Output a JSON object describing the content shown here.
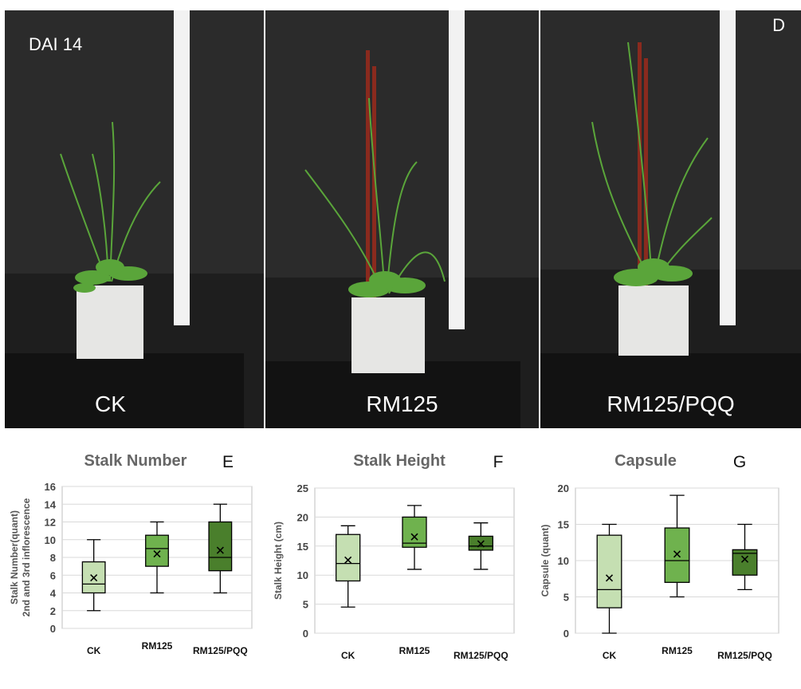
{
  "photos": {
    "day_label": "DAI 14",
    "panel_letter": "D",
    "treatments": [
      "CK",
      "RM125",
      "RM125/PQQ"
    ]
  },
  "colors": {
    "background": "#2b2b2b",
    "tray": "#1e1e1e",
    "pot": "#e6e6e4",
    "leaf": "#5aa53a",
    "stick": "#8a2a1e",
    "ruler": "#f2f2f2",
    "box_ck": "#c5dfb2",
    "box_rm125": "#6fb24e",
    "box_pqq": "#4a7f2c"
  },
  "chart_data": [
    {
      "type": "box",
      "title": "Stalk Number",
      "panel": "E",
      "ylabel": "Stalk Number(quant)",
      "ylabel2": "2nd and 3rd inflorescence",
      "ylim": [
        0,
        16
      ],
      "yticks": [
        0,
        2,
        4,
        6,
        8,
        10,
        12,
        14,
        16
      ],
      "categories": [
        "CK",
        "RM125",
        "RM125/PQQ"
      ],
      "boxes": [
        {
          "min": 2,
          "q1": 4,
          "median": 5,
          "q3": 7.5,
          "max": 10,
          "mean": 5.7
        },
        {
          "min": 4,
          "q1": 7,
          "median": 9,
          "q3": 10.5,
          "max": 12,
          "mean": 8.4
        },
        {
          "min": 4,
          "q1": 6.5,
          "median": 8,
          "q3": 12,
          "max": 14,
          "mean": 8.8
        }
      ],
      "grid": true
    },
    {
      "type": "box",
      "title": "Stalk Height",
      "panel": "F",
      "ylabel": "Stalk Height (cm)",
      "ylim": [
        0,
        25
      ],
      "yticks": [
        0,
        5,
        10,
        15,
        20,
        25
      ],
      "categories": [
        "CK",
        "RM125",
        "RM125/PQQ"
      ],
      "boxes": [
        {
          "min": 4.5,
          "q1": 9,
          "median": 12,
          "q3": 17,
          "max": 18.5,
          "mean": 12.6
        },
        {
          "min": 11,
          "q1": 14.8,
          "median": 15.5,
          "q3": 20,
          "max": 22,
          "mean": 16.6
        },
        {
          "min": 11,
          "q1": 14.3,
          "median": 15,
          "q3": 16.7,
          "max": 19,
          "mean": 15.4
        }
      ],
      "grid": true
    },
    {
      "type": "box",
      "title": "Capsule",
      "panel": "G",
      "ylabel": "Capsule (quant)",
      "ylim": [
        0,
        20
      ],
      "yticks": [
        0,
        5,
        10,
        15,
        20
      ],
      "categories": [
        "CK",
        "RM125",
        "RM125/PQQ"
      ],
      "boxes": [
        {
          "min": 0,
          "q1": 3.5,
          "median": 6,
          "q3": 13.5,
          "max": 15,
          "mean": 7.6
        },
        {
          "min": 5,
          "q1": 7,
          "median": 10,
          "q3": 14.5,
          "max": 19,
          "mean": 10.9
        },
        {
          "min": 6,
          "q1": 8,
          "median": 11,
          "q3": 11.5,
          "max": 15,
          "mean": 10.2
        }
      ],
      "grid": true
    }
  ]
}
